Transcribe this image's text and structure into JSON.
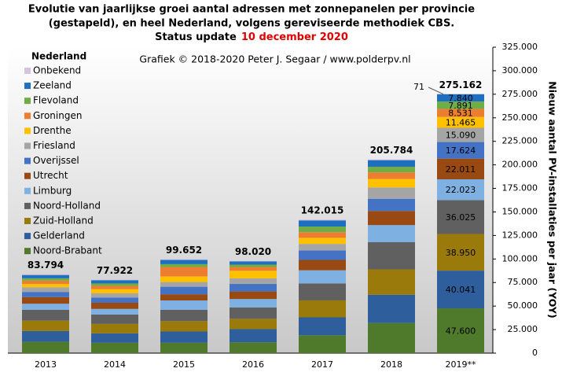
{
  "chart_data": {
    "type": "stacked_bar",
    "title": [
      "Evolutie van jaarlijkse groei aantal adressen met zonnepanelen per provincie",
      "(gestapeld), en heel Nederland, volgens gereviseerde methodiek CBS."
    ],
    "status_label": "Status update",
    "status_date": "10 december 2020",
    "annotation": "Grafiek © 2018-2020 Peter J. Segaar / www.polderpv.nl",
    "legend_title": "Nederland",
    "legend_position": "upper left",
    "y_label": "Nieuw aantal PV-installaties per jaar (YOY)",
    "categories": [
      "2013",
      "2014",
      "2015",
      "2016",
      "2017",
      "2018",
      "2019**"
    ],
    "series": [
      {
        "name": "Noord-Brabant",
        "color": "#4f7a2c",
        "values": [
          12000,
          11000,
          11000,
          11500,
          19000,
          32000,
          47600
        ],
        "value_labels": [
          null,
          null,
          null,
          null,
          null,
          null,
          "47.600"
        ]
      },
      {
        "name": "Gelderland",
        "color": "#2e5f9c",
        "values": [
          11500,
          10000,
          12000,
          14000,
          19000,
          30000,
          40041
        ],
        "value_labels": [
          null,
          null,
          null,
          null,
          null,
          null,
          "40.041"
        ]
      },
      {
        "name": "Zuid-Holland",
        "color": "#9b7a0c",
        "values": [
          11000,
          10000,
          11000,
          11000,
          18000,
          27000,
          38950
        ],
        "value_labels": [
          null,
          null,
          null,
          null,
          null,
          null,
          "38.950"
        ]
      },
      {
        "name": "Noord-Holland",
        "color": "#606060",
        "values": [
          11500,
          10000,
          12000,
          12000,
          18000,
          29000,
          36025
        ],
        "value_labels": [
          null,
          null,
          null,
          null,
          null,
          null,
          "36.025"
        ]
      },
      {
        "name": "Limburg",
        "color": "#7fb0e2",
        "values": [
          6500,
          6000,
          10000,
          9000,
          14000,
          18000,
          22023
        ],
        "value_labels": [
          null,
          null,
          null,
          null,
          null,
          null,
          "22.023"
        ]
      },
      {
        "name": "Utrecht",
        "color": "#984a12",
        "values": [
          7000,
          6500,
          6500,
          8000,
          11000,
          15000,
          22011
        ],
        "value_labels": [
          null,
          null,
          null,
          null,
          null,
          null,
          "22.011"
        ]
      },
      {
        "name": "Overijssel",
        "color": "#4472c4",
        "values": [
          5500,
          5500,
          8000,
          8000,
          10000,
          13000,
          17624
        ],
        "value_labels": [
          null,
          null,
          null,
          null,
          null,
          null,
          "17.624"
        ]
      },
      {
        "name": "Friesland",
        "color": "#a5a5a5",
        "values": [
          5000,
          4500,
          5000,
          6000,
          7000,
          12000,
          15090
        ],
        "value_labels": [
          null,
          null,
          null,
          null,
          null,
          null,
          "15.090"
        ]
      },
      {
        "name": "Drenthe",
        "color": "#ffc000",
        "values": [
          3500,
          4500,
          6000,
          8000,
          6500,
          9000,
          11465
        ],
        "value_labels": [
          null,
          null,
          null,
          null,
          null,
          null,
          "11.465"
        ]
      },
      {
        "name": "Groningen",
        "color": "#ed7d31",
        "values": [
          3500,
          3500,
          10000,
          4000,
          6000,
          7000,
          8531
        ],
        "value_labels": [
          null,
          null,
          null,
          null,
          null,
          null,
          "8.531"
        ]
      },
      {
        "name": "Flevoland",
        "color": "#70ad47",
        "values": [
          2500,
          2500,
          3000,
          2500,
          6000,
          6000,
          7891
        ],
        "value_labels": [
          null,
          null,
          null,
          null,
          null,
          null,
          "7.891"
        ]
      },
      {
        "name": "Zeeland",
        "color": "#1f6fbf",
        "values": [
          3500,
          3500,
          4500,
          3500,
          6500,
          7000,
          7840
        ],
        "value_labels": [
          null,
          null,
          null,
          null,
          null,
          null,
          "7.840"
        ]
      },
      {
        "name": "Onbekend",
        "color": "#d6c3e0",
        "values": [
          794,
          422,
          652,
          520,
          1015,
          784,
          71
        ]
      }
    ],
    "totals": {
      "values": [
        83794,
        77922,
        99652,
        98020,
        142015,
        205784,
        275162
      ],
      "value_labels": [
        "83.794",
        "77.922",
        "99.652",
        "98.020",
        "142.015",
        "205.784",
        "275.162"
      ]
    },
    "ylim": [
      0,
      325000
    ],
    "yticks": [
      0,
      {
        "value": 25000,
        "label": "25.000"
      },
      {
        "value": 50000,
        "label": "50.000"
      },
      {
        "value": 75000,
        "label": "75.000"
      },
      {
        "value": 100000,
        "label": "100.000"
      },
      {
        "value": 125000,
        "label": "125.000"
      },
      {
        "value": 150000,
        "label": "150.000"
      },
      {
        "value": 175000,
        "label": "175.000"
      },
      {
        "value": 200000,
        "label": "200.000"
      },
      {
        "value": 225000,
        "label": "225.000"
      },
      {
        "value": 250000,
        "label": "250.000"
      },
      {
        "value": 275000,
        "label": "275.000"
      },
      {
        "value": 300000,
        "label": "300.000"
      },
      {
        "value": 325000,
        "label": "325.000"
      }
    ],
    "grid": false
  }
}
